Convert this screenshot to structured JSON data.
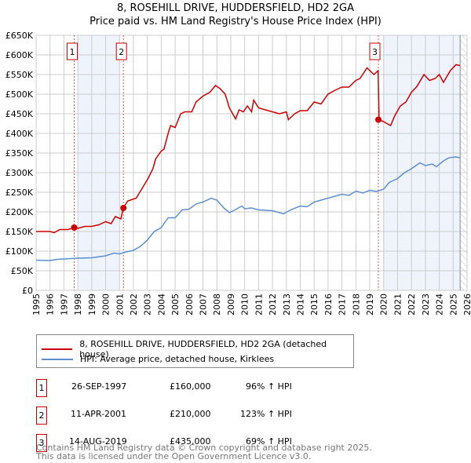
{
  "chart_data": {
    "type": "line",
    "title": "8, ROSEHILL DRIVE, HUDDERSFIELD, HD2 2GA",
    "subtitle": "Price paid vs. HM Land Registry's House Price Index (HPI)",
    "xlim": [
      1995,
      2026
    ],
    "ylim": [
      0,
      650000
    ],
    "y_ticks": [
      0,
      50000,
      100000,
      150000,
      200000,
      250000,
      300000,
      350000,
      400000,
      450000,
      500000,
      550000,
      600000,
      650000
    ],
    "y_tick_labels": [
      "£0",
      "£50K",
      "£100K",
      "£150K",
      "£200K",
      "£250K",
      "£300K",
      "£350K",
      "£400K",
      "£450K",
      "£500K",
      "£550K",
      "£600K",
      "£650K"
    ],
    "x_tick_labels": [
      "1995",
      "1996",
      "1997",
      "1998",
      "1999",
      "2000",
      "2001",
      "2002",
      "2003",
      "2004",
      "2005",
      "2006",
      "2007",
      "2008",
      "2009",
      "2010",
      "2011",
      "2012",
      "2013",
      "2014",
      "2015",
      "2016",
      "2017",
      "2018",
      "2019",
      "2020",
      "2021",
      "2022",
      "2023",
      "2024",
      "2025",
      "2026"
    ],
    "grid": true,
    "series": [
      {
        "name": "8, ROSEHILL DRIVE, HUDDERSFIELD, HD2 2GA (detached house)",
        "color": "#cc0000",
        "x": [
          1995,
          1996,
          1996.3,
          1996.7,
          1997.3,
          1997.74,
          1998,
          1998.5,
          1999,
          1999.5,
          2000,
          2000.4,
          2000.7,
          2001.1,
          2001.26,
          2001.6,
          2002.2,
          2002.8,
          2003.05,
          2003.4,
          2003.6,
          2004,
          2004.2,
          2004.5,
          2004.67,
          2005,
          2005.4,
          2005.7,
          2006.2,
          2006.5,
          2007,
          2007.5,
          2007.9,
          2008.2,
          2008.6,
          2008.9,
          2009.35,
          2009.6,
          2009.9,
          2010.2,
          2010.5,
          2010.65,
          2011,
          2011.5,
          2012,
          2012.5,
          2013,
          2013.15,
          2013.6,
          2014,
          2014.5,
          2015,
          2015.5,
          2016,
          2016.5,
          2017,
          2017.5,
          2018,
          2018.3,
          2018.8,
          2019.3,
          2019.6,
          2019.67,
          2020,
          2020.5,
          2020.8,
          2021.2,
          2021.6,
          2022,
          2022.4,
          2022.9,
          2023.3,
          2023.7,
          2024,
          2024.3,
          2024.8,
          2025.2,
          2025.5
        ],
        "y": [
          150000,
          150000,
          147000,
          155000,
          155000,
          160000,
          158000,
          163000,
          163000,
          167000,
          175000,
          170000,
          188000,
          182000,
          210000,
          228000,
          235000,
          270000,
          285000,
          310000,
          335000,
          355000,
          360000,
          400000,
          420000,
          415000,
          450000,
          455000,
          455000,
          480000,
          495000,
          505000,
          522000,
          515000,
          500000,
          465000,
          437000,
          460000,
          455000,
          470000,
          455000,
          485000,
          465000,
          460000,
          455000,
          450000,
          455000,
          435000,
          450000,
          458000,
          458000,
          480000,
          475000,
          500000,
          510000,
          518000,
          518000,
          535000,
          540000,
          567000,
          550000,
          560000,
          435000,
          430000,
          420000,
          445000,
          470000,
          480000,
          505000,
          520000,
          550000,
          535000,
          540000,
          550000,
          530000,
          560000,
          575000,
          573000
        ]
      },
      {
        "name": "HPI: Average price, detached house, Kirklees",
        "color": "#5b8fd0",
        "x": [
          1995,
          1996,
          1996.5,
          1997,
          1998,
          1999,
          2000,
          2000.6,
          2001,
          2001.5,
          2002,
          2002.5,
          2003,
          2003.5,
          2004,
          2004.5,
          2005,
          2005.5,
          2006,
          2006.5,
          2007,
          2007.6,
          2008,
          2008.5,
          2008.9,
          2009.3,
          2009.8,
          2010,
          2010.5,
          2011,
          2012,
          2012.8,
          2013.3,
          2014,
          2014.5,
          2015,
          2015.5,
          2016,
          2017,
          2017.5,
          2018,
          2018.5,
          2019,
          2019.5,
          2020,
          2020.4,
          2021,
          2021.5,
          2022,
          2022.6,
          2023,
          2023.5,
          2023.8,
          2024.3,
          2024.7,
          2025.2,
          2025.5
        ],
        "y": [
          77000,
          76000,
          79000,
          80000,
          82000,
          83000,
          88000,
          95000,
          93000,
          98000,
          102000,
          112000,
          128000,
          150000,
          160000,
          185000,
          185000,
          205000,
          207000,
          220000,
          225000,
          235000,
          230000,
          210000,
          198000,
          205000,
          215000,
          208000,
          210000,
          205000,
          203000,
          195000,
          205000,
          215000,
          213000,
          225000,
          230000,
          235000,
          245000,
          242000,
          253000,
          248000,
          255000,
          252000,
          258000,
          275000,
          285000,
          300000,
          310000,
          325000,
          318000,
          322000,
          315000,
          330000,
          338000,
          340000,
          338000
        ]
      }
    ],
    "sales": [
      {
        "label": "1",
        "x": 1997.74,
        "price": 160000,
        "date": "26-SEP-1997",
        "price_text": "£160,000",
        "hpi": "96% ↑ HPI"
      },
      {
        "label": "2",
        "x": 2001.28,
        "price": 210000,
        "date": "11-APR-2001",
        "price_text": "£210,000",
        "hpi": "123% ↑ HPI"
      },
      {
        "label": "3",
        "x": 2019.62,
        "price": 435000,
        "date": "14-AUG-2019",
        "price_text": "£435,000",
        "hpi": "69% ↑ HPI"
      }
    ],
    "shaded_ranges": [
      [
        1998,
        2001
      ],
      [
        2020,
        2025.5
      ]
    ],
    "hatched_from": 2025.5,
    "legend_placement": "bottom"
  },
  "footer": {
    "line1": "Contains HM Land Registry data © Crown copyright and database right 2025.",
    "line2": "This data is licensed under the Open Government Licence v3.0."
  }
}
